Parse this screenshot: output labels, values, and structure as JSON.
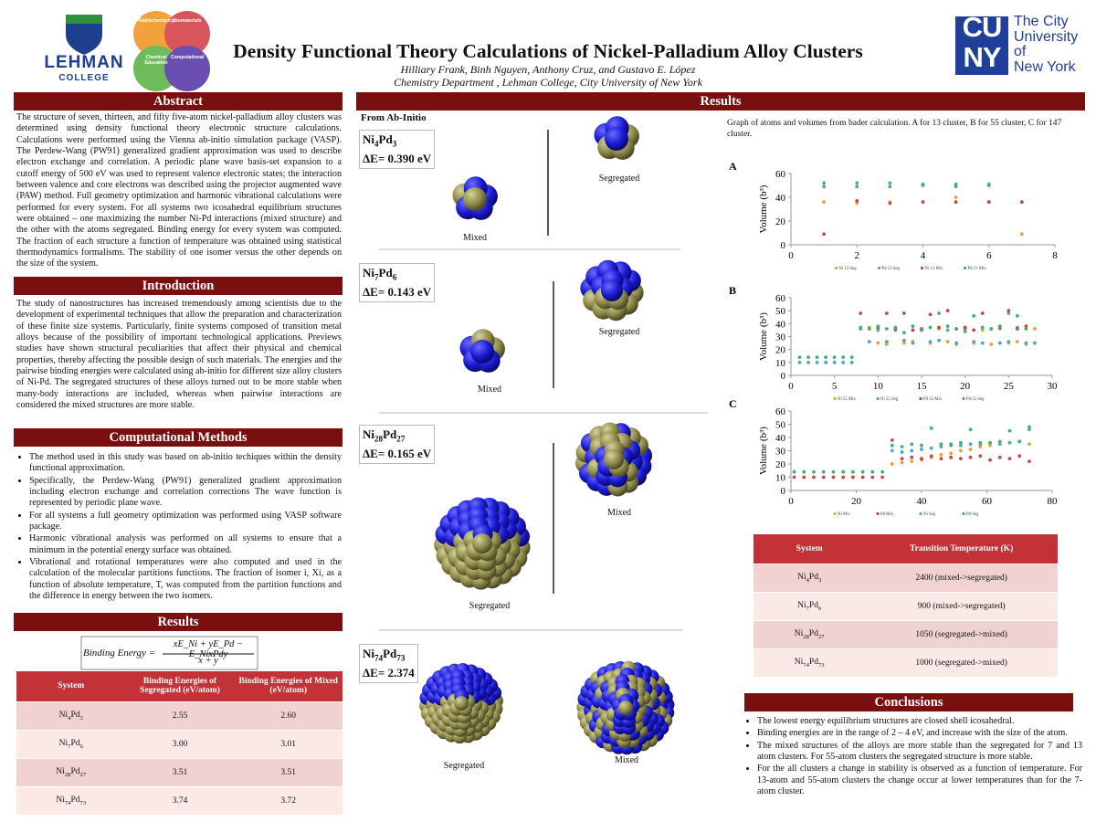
{
  "header": {
    "title": "Density Functional Theory Calculations of Nickel-Palladium Alloy Clusters",
    "authors": "Hilliary Frank, Binh Nguyen, Anthony Cruz, and Gustavo E. López",
    "department": "Chemistry Department , Lehman College, City University of New York",
    "lehman": [
      "LEHMAN",
      "COLLEGE"
    ],
    "circles": [
      "Radiochemistry",
      "Biomaterials",
      "Chemical Education",
      "Computational"
    ],
    "cuny": [
      "CU",
      "NY"
    ],
    "cuny_name": [
      "The City",
      "University",
      "of",
      "New York"
    ]
  },
  "abstract": {
    "heading": "Abstract",
    "text": "The structure of seven, thirteen, and fifty five-atom nickel-palladium alloy clusters was determined using density functional theory electronic structure calculations. Calculations were performed using the Vienna ab-initio simulation package (VASP). The Perdew-Wang (PW91) generalized gradient approximation was used to describe electron exchange and correlation. A periodic plane wave basis-set expansion to a cutoff energy of 500 eV was used to represent valence electronic states; the interaction between valence and core electrons was described using the projector augmented wave (PAW) method. Full geometry optimization and harmonic vibrational calculations were performed for every system. For all systems two icosahedral equilibrium structures were obtained – one maximizing the number Ni-Pd interactions (mixed structure) and the other with the atoms segregated. Binding energy for every system was computed. The fraction of each structure a function of temperature was obtained using statistical thermodynamics formalisms. The stability of one isomer versus the other depends on the size of the system."
  },
  "introduction": {
    "heading": "Introduction",
    "text": "The study of nanostructures has increased tremendously among scientists due to the development of experimental techniques that allow the preparation and characterization of these finite size systems. Particularly, finite systems composed of transition metal alloys because of the possibility of important technological applications. Previews studies have shown structural peculiarities that affect their physical and chemical properties, thereby affecting the possible design of such materials. The energies and the pairwise binding energies were calculated using ab-initio for different size alloy clusters of Ni-Pd. The segregated structures of these alloys turned out to be more stable when many-body interactions are included, whereas when pairwise interactions are considered the mixed structures are more stable."
  },
  "methods": {
    "heading": "Computational Methods",
    "bullets": [
      "The method used in this study was based on ab-initio techiques within the density functional approximation.",
      "Specifically, the Perdew-Wang (PW91) generalized gradient approximation including electron exchange and correlation corrections  The wave function is represented by periodic plane wave.",
      "For all systems a full geometry optimization was performed using VASP software package.",
      "Harmonic vibrational analysis was performed on all systems to ensure that a minimum in the potential energy surface was obtained.",
      "Vibrational and rotational temperatures were also computed and used in the calculation of the molecular partitions functions. The fraction of isomer i, Xi, as a function of absolute temperature, T, was computed from the partition functions and the difference in energy between the two isomers."
    ]
  },
  "results_left": {
    "heading": "Results",
    "equation": {
      "lhs": "Binding Energy =",
      "numerator": "xE_Ni + yE_Pd − E_NixPdy",
      "denominator": "x + y"
    },
    "table": {
      "headers": [
        "System",
        "Binding Energies of Segregated (eV/atom)",
        "Binding Energies of Mixed (eV/atom)"
      ],
      "rows": [
        [
          [
            "Ni",
            "4",
            "Pd",
            "3"
          ],
          "2.55",
          "2.60"
        ],
        [
          [
            "Ni",
            "7",
            "Pd",
            "6"
          ],
          "3.00",
          "3.01"
        ],
        [
          [
            "Ni",
            "28",
            "Pd",
            "27"
          ],
          "3.51",
          "3.51"
        ],
        [
          [
            "Ni",
            "74",
            "Pd",
            "73"
          ],
          "3.74",
          "3.72"
        ]
      ]
    }
  },
  "results_right": {
    "heading": "Results",
    "subheading": "From Ab-Initio",
    "panels": [
      {
        "formula": [
          "Ni",
          "4",
          "Pd",
          "3"
        ],
        "delta": "ΔE= 0.390 eV",
        "first": "Mixed",
        "second": "Segregated"
      },
      {
        "formula": [
          "Ni",
          "7",
          "Pd",
          "6"
        ],
        "delta": "ΔE= 0.143 eV",
        "first": "Mixed",
        "second": "Segregated"
      },
      {
        "formula": [
          "Ni",
          "28",
          "Pd",
          "27"
        ],
        "delta": "ΔE= 0.165 eV",
        "first": "Segregated",
        "second": "Mixed"
      },
      {
        "formula": [
          "Ni",
          "74",
          "Pd",
          "73"
        ],
        "delta": "ΔE= 2.374",
        "first": "Segregated",
        "second": "Mixed"
      }
    ],
    "caption": "Graph of atoms and volumes from bader calculation. A for 13 cluster, B for 55 cluster, C for 147 cluster.",
    "transition_table": {
      "headers": [
        "System",
        "Transition Temperature (K)"
      ],
      "rows": [
        [
          [
            "Ni",
            "4",
            "Pd",
            "3"
          ],
          "2400 (mixed->segregated)"
        ],
        [
          [
            "Ni",
            "7",
            "Pd",
            "6"
          ],
          "900 (mixed->segregated)"
        ],
        [
          [
            "Ni",
            "28",
            "Pd",
            "27"
          ],
          "1050 (segregated->mixed)"
        ],
        [
          [
            "Ni",
            "74",
            "Pd",
            "73"
          ],
          "1000 (segregated->mixed)"
        ]
      ]
    }
  },
  "conclusions": {
    "heading": "Conclusions",
    "bullets": [
      "The lowest energy equilibrium structures are closed shell icosahedral.",
      "Binding energies are in the range of 2 – 4 eV, and increase with the size of the atom.",
      "The mixed structures of the alloys are more stable than the segregated for 7 and 13 atom clusters.  For 55-atom clusters the segregated structure is more stable.",
      "For the all clusters a change in stability is observed as a function of temperature. For 13-atom and 55-atom clusters the change occur at lower temperatures than for the 7-atom cluster."
    ]
  },
  "chart_data": [
    {
      "type": "scatter",
      "label": "A",
      "ylabel": "Volume (b³)",
      "x": [
        1,
        2,
        3,
        4,
        5,
        6,
        7
      ],
      "xlim": [
        0,
        8
      ],
      "ylim": [
        0,
        60
      ],
      "xticks": [
        0,
        2,
        4,
        6,
        8
      ],
      "yticks": [
        0,
        20,
        40,
        60
      ],
      "series": [
        {
          "name": "Ni 13 Seg",
          "color": "#f0a02c",
          "values": [
            36,
            35,
            36,
            36,
            40,
            36,
            9
          ]
        },
        {
          "name": "Pd 13 Seg",
          "color": "#4aa6c6",
          "values": [
            52,
            52,
            52,
            51,
            51,
            51,
            null
          ]
        },
        {
          "name": "Ni 13 Mix",
          "color": "#c8464a",
          "values": [
            9,
            37,
            35,
            36,
            36,
            36,
            36
          ]
        },
        {
          "name": "Pd 13 Mix",
          "color": "#49ad7a",
          "values": [
            49,
            49,
            49,
            50,
            49,
            50,
            null
          ]
        }
      ]
    },
    {
      "type": "scatter",
      "label": "B",
      "ylabel": "Volume (b³)",
      "x": [
        1,
        2,
        3,
        4,
        5,
        6,
        7,
        8,
        9,
        10,
        11,
        12,
        13,
        14,
        15,
        16,
        17,
        18,
        19,
        20,
        21,
        22,
        23,
        24,
        25,
        26,
        27,
        28
      ],
      "xlim": [
        0,
        30
      ],
      "ylim": [
        0,
        60
      ],
      "xticks": [
        0,
        5,
        10,
        15,
        20,
        25,
        30
      ],
      "yticks": [
        0,
        10,
        20,
        30,
        40,
        50,
        60
      ],
      "series": [
        {
          "name": "Ni 55 Mix",
          "color": "#f0a02c",
          "values": [
            null,
            null,
            null,
            null,
            null,
            null,
            null,
            36,
            37,
            25,
            24,
            36,
            25,
            26,
            35,
            25,
            36,
            26,
            24,
            36,
            25,
            35,
            24,
            36,
            25,
            26,
            24,
            36
          ]
        },
        {
          "name": "Ni 55 Seg",
          "color": "#4aa6c6",
          "values": [
            10,
            10,
            10,
            10,
            10,
            10,
            10,
            36,
            26,
            35,
            26,
            35,
            27,
            25,
            35,
            26,
            27,
            35,
            25,
            36,
            26,
            25,
            36,
            25,
            26,
            37,
            25,
            25
          ]
        },
        {
          "name": "Pd 55 Mix",
          "color": "#c8464a",
          "values": [
            null,
            null,
            null,
            null,
            null,
            null,
            null,
            48,
            36,
            37,
            48,
            36,
            48,
            35,
            36,
            47,
            37,
            50,
            36,
            37,
            35,
            48,
            36,
            37,
            50,
            36,
            38,
            null
          ]
        },
        {
          "name": "Pd 55 Seg",
          "color": "#49ad7a",
          "values": [
            14,
            14,
            14,
            14,
            14,
            14,
            14,
            37,
            36,
            38,
            36,
            37,
            33,
            38,
            35,
            37,
            48,
            38,
            36,
            34,
            46,
            37,
            36,
            38,
            48,
            46,
            36,
            null
          ]
        }
      ]
    },
    {
      "type": "scatter",
      "label": "C",
      "ylabel": "Volume (b³)",
      "x": [
        1,
        4,
        7,
        10,
        13,
        16,
        19,
        22,
        25,
        28,
        31,
        34,
        37,
        40,
        43,
        46,
        49,
        52,
        55,
        58,
        61,
        64,
        67,
        70,
        73
      ],
      "xlim": [
        0,
        80
      ],
      "ylim": [
        0,
        60
      ],
      "xticks": [
        0,
        20,
        40,
        60,
        80
      ],
      "yticks": [
        0,
        10,
        20,
        30,
        40,
        50,
        60
      ],
      "series": [
        {
          "name": "Ni Mix",
          "color": "#f0a02c",
          "values": [
            null,
            null,
            null,
            null,
            null,
            null,
            null,
            null,
            null,
            null,
            20,
            21,
            22,
            23,
            25,
            27,
            28,
            30,
            31,
            33,
            34,
            35,
            36,
            37,
            35
          ]
        },
        {
          "name": "Pd Mix",
          "color": "#c8464a",
          "values": [
            10,
            10,
            10,
            10,
            10,
            10,
            10,
            10,
            10,
            10,
            38,
            24,
            25,
            24,
            26,
            24,
            25,
            24,
            25,
            26,
            23,
            25,
            24,
            26,
            22
          ]
        },
        {
          "name": "Ni Seg",
          "color": "#4aa6c6",
          "values": [
            null,
            null,
            null,
            null,
            null,
            null,
            null,
            null,
            null,
            null,
            30,
            29,
            30,
            31,
            32,
            33,
            34,
            34,
            35,
            35,
            36,
            35,
            36,
            37,
            46
          ]
        },
        {
          "name": "Pd Seg",
          "color": "#49ad7a",
          "values": [
            14,
            14,
            14,
            14,
            14,
            14,
            14,
            14,
            14,
            14,
            34,
            33,
            35,
            34,
            47,
            35,
            35,
            36,
            46,
            36,
            36,
            37,
            45,
            37,
            48
          ]
        }
      ]
    }
  ]
}
